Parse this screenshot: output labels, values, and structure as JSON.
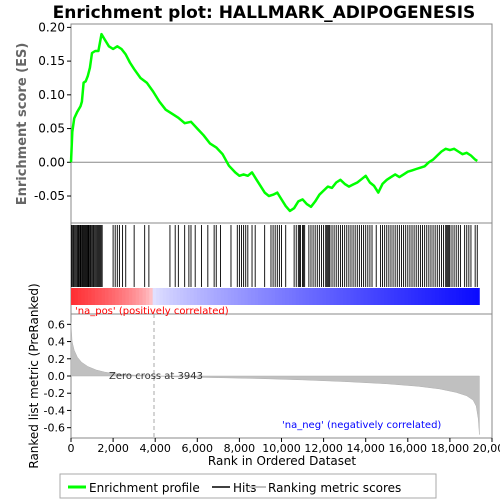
{
  "chart_data": {
    "type": "line",
    "title": "Enrichment plot: HALLMARK_ADIPOGENESIS",
    "top_panel": {
      "ylabel": "Enrichment score (ES)",
      "ylim": [
        -0.09,
        0.205
      ],
      "yticks": [
        -0.05,
        0.0,
        0.05,
        0.1,
        0.15,
        0.2
      ],
      "ytick_labels": [
        "-0.05",
        "0.00",
        "0.05",
        "0.10",
        "0.15",
        "0.20"
      ],
      "series": [
        {
          "x": [
            0,
            60,
            150,
            300,
            450,
            520,
            600,
            700,
            800,
            900,
            1000,
            1150,
            1300,
            1450,
            1600,
            1800,
            2000,
            2200,
            2400,
            2600,
            2800,
            3000,
            3300,
            3600,
            3900,
            4200,
            4500,
            4800,
            5100,
            5400,
            5700,
            6000,
            6300,
            6600,
            6900,
            7200,
            7500,
            7800,
            8000,
            8200,
            8400,
            8600,
            8800,
            9000,
            9200,
            9400,
            9600,
            9800,
            10000,
            10200,
            10400,
            10600,
            10800,
            11000,
            11200,
            11400,
            11600,
            11800,
            12000,
            12200,
            12400,
            12600,
            12800,
            13000,
            13200,
            13400,
            13600,
            13800,
            14000,
            14200,
            14400,
            14600,
            14800,
            15000,
            15200,
            15400,
            15600,
            15800,
            16000,
            16200,
            16400,
            16600,
            16800,
            17000,
            17200,
            17400,
            17600,
            17800,
            18000,
            18200,
            18400,
            18600,
            18800,
            19000,
            19200,
            19300
          ],
          "y": [
            0.0,
            0.045,
            0.065,
            0.075,
            0.083,
            0.09,
            0.118,
            0.12,
            0.128,
            0.14,
            0.162,
            0.165,
            0.165,
            0.19,
            0.182,
            0.172,
            0.168,
            0.172,
            0.168,
            0.16,
            0.148,
            0.138,
            0.125,
            0.118,
            0.105,
            0.09,
            0.078,
            0.072,
            0.066,
            0.058,
            0.06,
            0.05,
            0.04,
            0.028,
            0.022,
            0.012,
            -0.005,
            -0.015,
            -0.02,
            -0.018,
            -0.02,
            -0.015,
            -0.025,
            -0.035,
            -0.045,
            -0.05,
            -0.048,
            -0.045,
            -0.055,
            -0.065,
            -0.072,
            -0.068,
            -0.058,
            -0.055,
            -0.062,
            -0.066,
            -0.058,
            -0.048,
            -0.042,
            -0.036,
            -0.038,
            -0.03,
            -0.026,
            -0.032,
            -0.036,
            -0.033,
            -0.03,
            -0.025,
            -0.02,
            -0.03,
            -0.035,
            -0.045,
            -0.032,
            -0.026,
            -0.022,
            -0.018,
            -0.022,
            -0.018,
            -0.014,
            -0.012,
            -0.01,
            -0.008,
            -0.006,
            0.0,
            0.004,
            0.01,
            0.016,
            0.02,
            0.018,
            0.02,
            0.016,
            0.012,
            0.014,
            0.01,
            0.004,
            0.002
          ]
        }
      ],
      "color": "#00ff00"
    },
    "hits_panel": {
      "hit_positions": [
        20,
        60,
        110,
        150,
        200,
        250,
        300,
        340,
        380,
        430,
        470,
        520,
        560,
        600,
        640,
        690,
        730,
        770,
        810,
        850,
        900,
        940,
        990,
        1040,
        1080,
        1130,
        1180,
        1230,
        1280,
        1330,
        1380,
        1430,
        1480,
        2000,
        2100,
        2200,
        2300,
        2450,
        2600,
        3000,
        3500,
        3700,
        4700,
        4950,
        5100,
        5400,
        5600,
        5700,
        5900,
        6200,
        6500,
        6800,
        6900,
        7100,
        7600,
        7900,
        8000,
        8100,
        8200,
        8300,
        8400,
        8600,
        8750,
        9200,
        9500,
        9600,
        9700,
        9800,
        9900,
        10000,
        10200,
        10600,
        10700,
        10800,
        10850,
        10900,
        11000,
        11050,
        11100,
        11300,
        11400,
        11500,
        11600,
        11700,
        11800,
        11900,
        12000,
        12100,
        12150,
        12200,
        12250,
        12300,
        12400,
        12500,
        12600,
        12700,
        12800,
        12900,
        13000,
        13100,
        13200,
        13300,
        13400,
        13500,
        13600,
        13700,
        13800,
        13900,
        14000,
        14100,
        14200,
        14300,
        14500,
        14700,
        14800,
        14900,
        15000,
        15100,
        15200,
        15300,
        15400,
        15500,
        15600,
        15700,
        15800,
        15900,
        16000,
        16100,
        16200,
        16300,
        16400,
        16500,
        16600,
        16700,
        16800,
        16900,
        17000,
        17100,
        17200,
        17300,
        17400,
        17500,
        17600,
        17700,
        17800,
        17850,
        17900,
        17950,
        18000,
        18100,
        18200,
        18300,
        18400,
        18500,
        18700,
        18800,
        18900,
        19000,
        19200,
        19300
      ]
    },
    "rank_panel": {
      "ylabel": "Ranked list metric (PreRanked)",
      "ylim": [
        -0.72,
        0.72
      ],
      "yticks": [
        -0.6,
        -0.4,
        -0.2,
        0.0,
        0.2,
        0.4,
        0.6
      ],
      "ytick_labels": [
        "-0.6",
        "-0.4",
        "-0.2",
        "0.0",
        "0.2",
        "0.4",
        "0.6"
      ],
      "xlabel": "Rank in Ordered Dataset",
      "xlim": [
        0,
        20000
      ],
      "xticks": [
        0,
        2000,
        4000,
        6000,
        8000,
        10000,
        12000,
        14000,
        16000,
        18000,
        20000
      ],
      "xtick_labels": [
        "0",
        "2,000",
        "4,000",
        "6,000",
        "8,000",
        "10,000",
        "12,000",
        "14,000",
        "16,000",
        "18,000",
        "20,000"
      ],
      "zero_cross": 3943,
      "zero_cross_label": "Zero cross at 3943",
      "pos_label": "'na_pos' (positively correlated)",
      "neg_label": "'na_neg' (negatively correlated)",
      "pos_color": "#ff0000",
      "neg_color": "#0000ff",
      "total_rank": 19400,
      "metric_curve": {
        "x": [
          0,
          50,
          150,
          300,
          500,
          800,
          1200,
          1600,
          2000,
          2500,
          3000,
          3943,
          5000,
          7000,
          9000,
          11000,
          13000,
          15000,
          16500,
          17500,
          18300,
          18800,
          19100,
          19250,
          19350,
          19400
        ],
        "y": [
          0.62,
          0.4,
          0.3,
          0.22,
          0.16,
          0.11,
          0.07,
          0.045,
          0.03,
          0.018,
          0.01,
          0.0,
          -0.01,
          -0.02,
          -0.03,
          -0.045,
          -0.065,
          -0.09,
          -0.12,
          -0.15,
          -0.19,
          -0.23,
          -0.28,
          -0.35,
          -0.5,
          -0.68
        ]
      }
    },
    "legend": {
      "items": [
        {
          "label": "Enrichment profile",
          "color": "#00ff00"
        },
        {
          "label": "Hits",
          "color": "#000000"
        },
        {
          "label": "Ranking metric scores",
          "color": "#c0c0c0"
        }
      ]
    }
  }
}
